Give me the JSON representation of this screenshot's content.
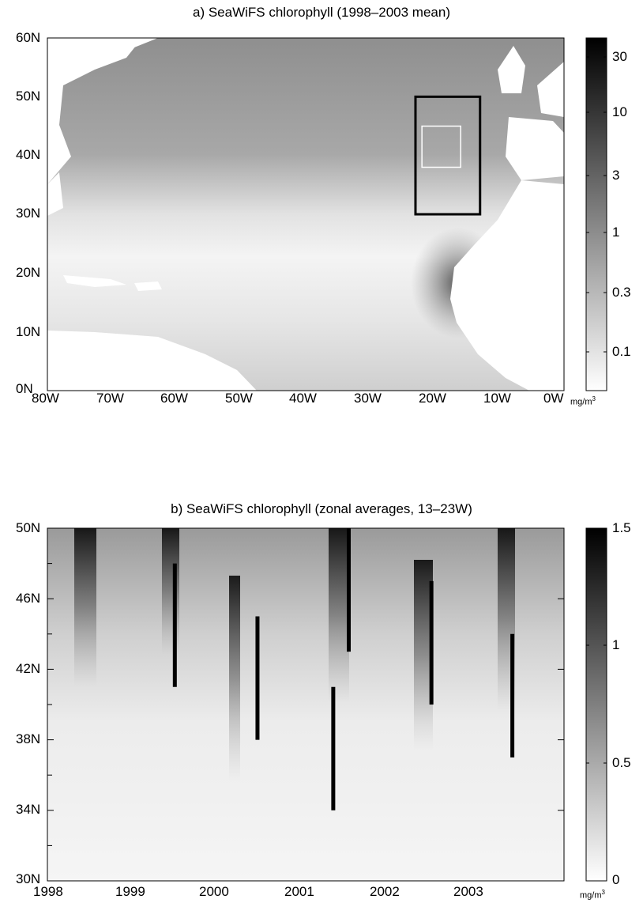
{
  "panel_a": {
    "title": "a) SeaWiFS chlorophyll (1998–2003 mean)",
    "y_ticks": [
      "60N",
      "50N",
      "40N",
      "30N",
      "20N",
      "10N",
      "0N"
    ],
    "x_ticks": [
      "80W",
      "70W",
      "60W",
      "50W",
      "40W",
      "30W",
      "20W",
      "10W",
      "0W"
    ],
    "colorbar_ticks": [
      "30",
      "10",
      "3",
      "1",
      "0.3",
      "0.1"
    ],
    "colorbar_scale": "log",
    "colorbar_unit_base": "mg/m",
    "colorbar_unit_exp": "3",
    "outer_box": {
      "lon_min": -23,
      "lon_max": -13,
      "lat_min": 30,
      "lat_max": 50
    },
    "inner_box": {
      "lon_min": -22,
      "lon_max": -16,
      "lat_min": 38,
      "lat_max": 45
    }
  },
  "panel_b": {
    "title": "b) SeaWiFS chlorophyll (zonal averages, 13–23W)",
    "y_ticks": [
      "50N",
      "46N",
      "42N",
      "38N",
      "34N",
      "30N"
    ],
    "x_ticks": [
      "1998",
      "1999",
      "2000",
      "2001",
      "2002",
      "2003"
    ],
    "colorbar_ticks": [
      "1.5",
      "1",
      "0.5",
      "0"
    ],
    "colorbar_unit_base": "mg/m",
    "colorbar_unit_exp": "3",
    "bloom_lines": [
      {
        "year": 1999.48,
        "lat_south": 41,
        "lat_north": 48
      },
      {
        "year": 2000.44,
        "lat_south": 38,
        "lat_north": 45
      },
      {
        "year": 2001.32,
        "lat_south": 34,
        "lat_north": 41
      },
      {
        "year": 2001.5,
        "lat_south": 43,
        "lat_north": 50
      },
      {
        "year": 2002.46,
        "lat_south": 40,
        "lat_north": 47
      },
      {
        "year": 2003.4,
        "lat_south": 37,
        "lat_north": 44
      }
    ]
  }
}
